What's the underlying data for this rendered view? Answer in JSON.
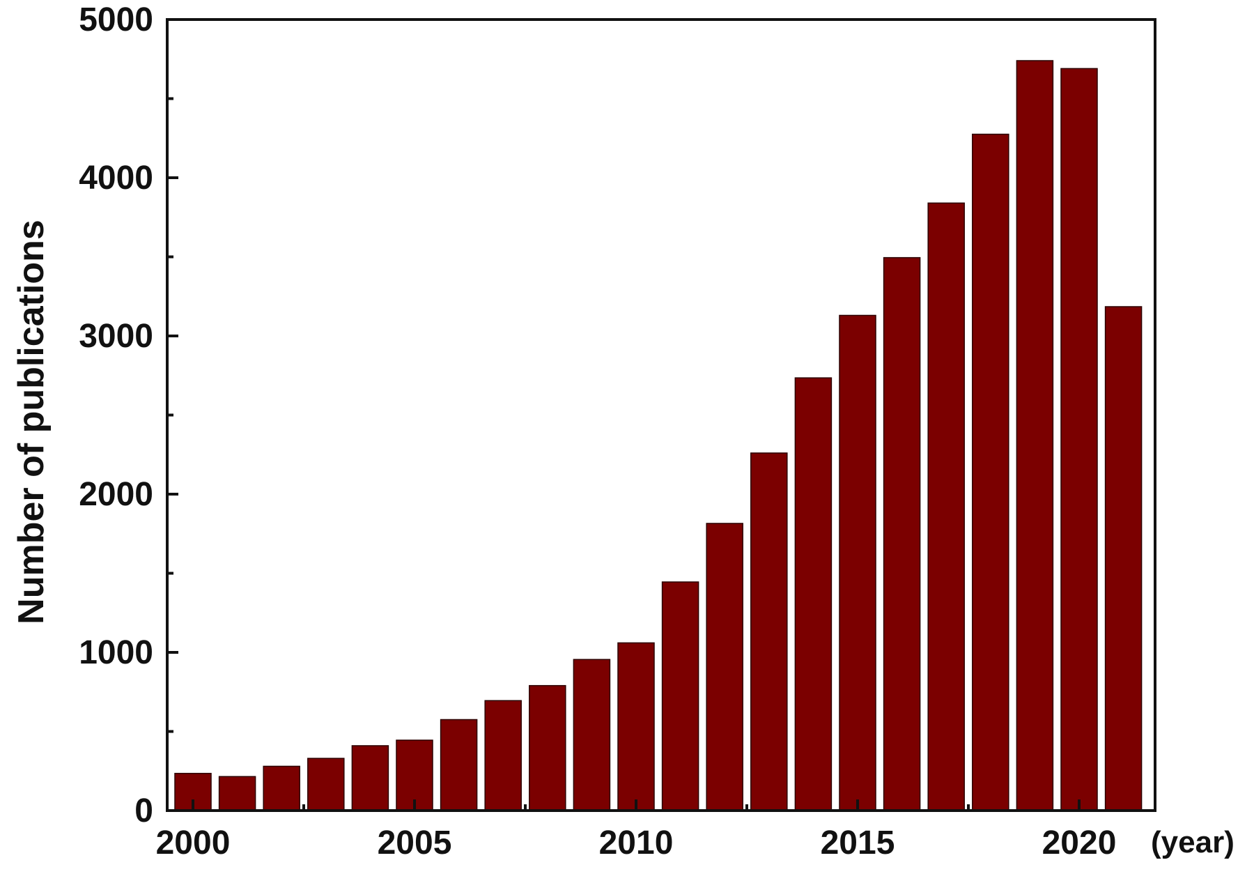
{
  "chart_data": {
    "type": "bar",
    "title": "",
    "xlabel": "",
    "x_unit_label": "(year)",
    "ylabel": "Number of publications",
    "ylim": [
      0,
      5000
    ],
    "yticks": [
      0,
      1000,
      2000,
      3000,
      4000,
      5000
    ],
    "xticks": [
      2000,
      2005,
      2010,
      2015,
      2020
    ],
    "categories": [
      2000,
      2001,
      2002,
      2003,
      2004,
      2005,
      2006,
      2007,
      2008,
      2009,
      2010,
      2011,
      2012,
      2013,
      2014,
      2015,
      2016,
      2017,
      2018,
      2019,
      2020,
      2021
    ],
    "values": [
      235,
      215,
      280,
      330,
      410,
      445,
      575,
      695,
      790,
      955,
      1060,
      1445,
      1815,
      2260,
      2735,
      3130,
      3495,
      3840,
      4275,
      4740,
      4690,
      3185
    ],
    "bar_color": "#7b0000",
    "grid": false,
    "legend": "none"
  }
}
